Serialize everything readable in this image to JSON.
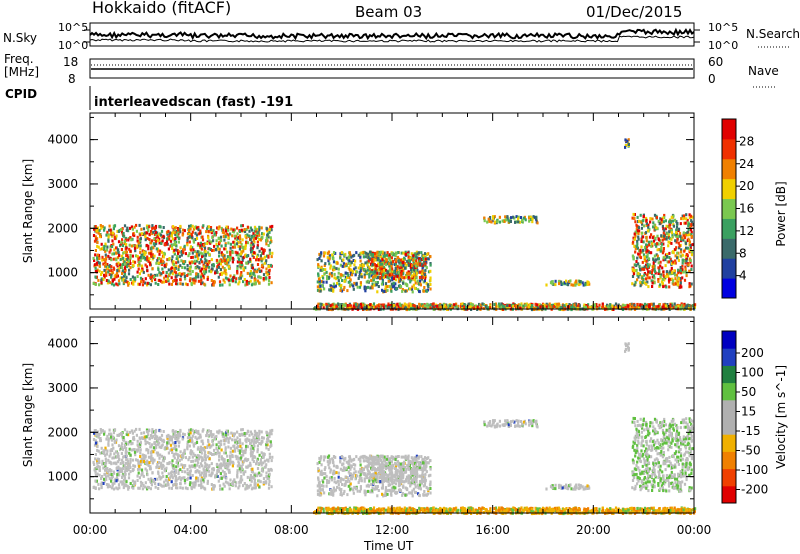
{
  "header": {
    "station": "Hokkaido (fitACF)",
    "beam": "Beam 03",
    "date": "01/Dec/2015"
  },
  "top_panels": {
    "nsky_label": "N.Sky",
    "nsearch_label": "N.Search",
    "noise_ticks_left": [
      "10^5",
      "10^0"
    ],
    "noise_ticks_right": [
      "10^5",
      "10^0"
    ],
    "freq_label_line1": "Freq.",
    "freq_label_line2": "[MHz]",
    "freq_ticks": [
      "18",
      "8"
    ],
    "nave_label": "Nave",
    "nave_ticks": [
      "60",
      "0"
    ],
    "cpid_label": "CPID",
    "cpid_text": "interleavedscan (fast) -191"
  },
  "colors": {
    "power_scale": [
      "#0000e0",
      "#2040a0",
      "#3a6a6a",
      "#3aa060",
      "#7ac850",
      "#f0d000",
      "#f08000",
      "#f03000",
      "#e00000"
    ],
    "velocity_scale": [
      "#e00000",
      "#f04000",
      "#f08000",
      "#f0b000",
      "#b0b0b0",
      "#b0b0b0",
      "#60c040",
      "#208040",
      "#2040c0",
      "#0000c0"
    ],
    "ground_scatter": "#bebebe"
  },
  "chart_data": [
    {
      "type": "heatmap",
      "name": "power",
      "x_ticks": [
        "00:00",
        "04:00",
        "08:00",
        "12:00",
        "16:00",
        "20:00",
        "00:00"
      ],
      "xlim_hours": [
        0,
        24
      ],
      "ylabel": "Slant Range [km]",
      "y_ticks": [
        "1000",
        "2000",
        "3000",
        "4000"
      ],
      "ylim_km": [
        180,
        4600
      ],
      "colorbar_label": "Power [dB]",
      "colorbar_ticks": [
        "4",
        "8",
        "12",
        "16",
        "20",
        "24",
        "28"
      ],
      "colorbar_range": [
        0,
        32
      ]
    },
    {
      "type": "heatmap",
      "name": "velocity",
      "x_ticks": [
        "00:00",
        "04:00",
        "08:00",
        "12:00",
        "16:00",
        "20:00",
        "00:00"
      ],
      "xlim_hours": [
        0,
        24
      ],
      "xlabel": "Time UT",
      "ylabel": "Slant Range [km]",
      "y_ticks": [
        "1000",
        "2000",
        "3000",
        "4000"
      ],
      "ylim_km": [
        180,
        4600
      ],
      "colorbar_label": "Velocity [m s^-1]",
      "colorbar_ticks": [
        "200",
        "100",
        "50",
        "15",
        "-15",
        "-50",
        "-100",
        "-200"
      ]
    }
  ]
}
